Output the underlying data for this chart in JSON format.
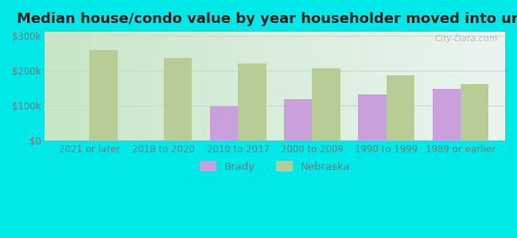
{
  "title": "Median house/condo value by year householder moved into unit",
  "categories": [
    "2021 or later",
    "2018 to 2020",
    "2010 to 2017",
    "2000 to 2009",
    "1990 to 1999",
    "1989 or earlier"
  ],
  "brady_values": [
    null,
    null,
    98000,
    118000,
    130000,
    148000
  ],
  "nebraska_values": [
    258000,
    235000,
    220000,
    205000,
    185000,
    160000
  ],
  "brady_color": "#c9a0dc",
  "nebraska_color": "#b8cc96",
  "background_outer": "#00e8e8",
  "background_inner_left": "#d0ead0",
  "background_inner_right": "#e8f5f0",
  "ylim": [
    0,
    310000
  ],
  "yticks": [
    0,
    100000,
    200000,
    300000
  ],
  "ytick_labels": [
    "$0",
    "$100k",
    "$200k",
    "$300k"
  ],
  "bar_width": 0.38,
  "legend_labels": [
    "Brady",
    "Nebraska"
  ],
  "title_fontsize": 13,
  "axis_fontsize": 8.5,
  "watermark_text": "City-Data.com",
  "grid_color": "#c8dcc8",
  "tick_color": "#777777"
}
